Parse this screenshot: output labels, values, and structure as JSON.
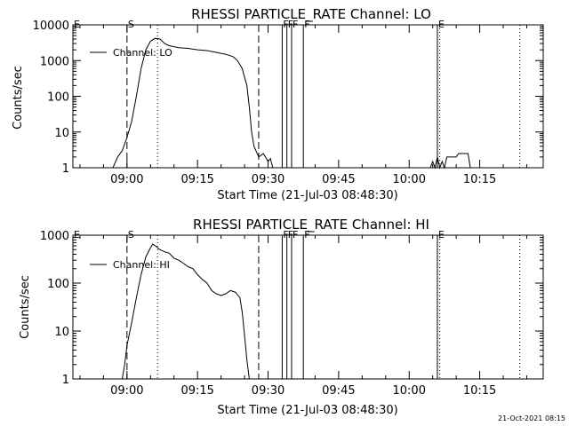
{
  "timestamp": "21-Oct-2021 08:15",
  "chart_data": [
    {
      "type": "line",
      "title": "RHESSI PARTICLE_RATE Channel: LO",
      "xlabel": "Start Time (21-Jul-03 08:48:30)",
      "ylabel": "Counts/sec",
      "y_scale": "log",
      "ylim": [
        1,
        10000
      ],
      "xlim": [
        "08:48:30",
        "10:28:30"
      ],
      "x_ticks": [
        "09:00",
        "09:15",
        "09:30",
        "09:45",
        "10:00",
        "10:15"
      ],
      "y_ticks": [
        "1",
        "10",
        "100",
        "1000",
        "10000"
      ],
      "legend": {
        "label": "Channel: LO",
        "position": "top-left"
      },
      "markers": [
        {
          "label": "E",
          "time": "08:48:30",
          "style": "none"
        },
        {
          "label": "S",
          "time": "09:00:00",
          "style": "dashed"
        },
        {
          "label": "",
          "time": "09:06:30",
          "style": "dotted"
        },
        {
          "label": "",
          "time": "09:28:00",
          "style": "dashed"
        },
        {
          "label": "F",
          "time": "09:33:00",
          "style": "solid"
        },
        {
          "label": "F",
          "time": "09:34:00",
          "style": "solid"
        },
        {
          "label": "F",
          "time": "09:35:00",
          "style": "solid"
        },
        {
          "label": "F",
          "time": "09:37:30",
          "style": "solid"
        },
        {
          "label": "E",
          "time": "10:06:00",
          "style": "solid"
        },
        {
          "label": "",
          "time": "10:06:30",
          "style": "dotted"
        },
        {
          "label": "",
          "time": "10:23:30",
          "style": "dotted"
        }
      ],
      "series": [
        {
          "values": [
            [
              "08:55:30",
              0.5
            ],
            [
              "08:57:00",
              1
            ],
            [
              "08:58:00",
              2
            ],
            [
              "08:59:00",
              3
            ],
            [
              "09:00:00",
              7
            ],
            [
              "09:01:00",
              20
            ],
            [
              "09:02:00",
              100
            ],
            [
              "09:03:00",
              600
            ],
            [
              "09:04:00",
              2000
            ],
            [
              "09:05:00",
              3500
            ],
            [
              "09:06:00",
              4200
            ],
            [
              "09:07:00",
              4000
            ],
            [
              "09:08:00",
              3000
            ],
            [
              "09:09:00",
              2600
            ],
            [
              "09:11:00",
              2300
            ],
            [
              "09:13:00",
              2200
            ],
            [
              "09:15:00",
              2000
            ],
            [
              "09:17:00",
              1900
            ],
            [
              "09:19:00",
              1700
            ],
            [
              "09:21:00",
              1500
            ],
            [
              "09:22:30",
              1300
            ],
            [
              "09:23:30",
              1000
            ],
            [
              "09:24:30",
              600
            ],
            [
              "09:25:30",
              200
            ],
            [
              "09:26:00",
              50
            ],
            [
              "09:26:30",
              10
            ],
            [
              "09:27:00",
              4
            ],
            [
              "09:28:00",
              2
            ],
            [
              "09:29:00",
              2.5
            ],
            [
              "09:30:00",
              1.5
            ],
            [
              "09:30:30",
              1.8
            ],
            [
              "09:31:00",
              1
            ],
            [
              "09:31:30",
              0.5
            ]
          ]
        },
        {
          "values": [
            [
              "10:04:30",
              0.5
            ],
            [
              "10:05:00",
              1.5
            ],
            [
              "10:05:30",
              0.5
            ],
            [
              "10:06:00",
              2
            ],
            [
              "10:06:30",
              0.5
            ],
            [
              "10:07:00",
              1.5
            ],
            [
              "10:07:30",
              0.5
            ],
            [
              "10:08:00",
              2
            ],
            [
              "10:09:00",
              2
            ],
            [
              "10:10:00",
              2
            ],
            [
              "10:10:30",
              2.5
            ],
            [
              "10:12:00",
              2.5
            ],
            [
              "10:12:30",
              2.5
            ],
            [
              "10:13:00",
              1
            ],
            [
              "10:13:30",
              0.5
            ]
          ]
        }
      ]
    },
    {
      "type": "line",
      "title": "RHESSI PARTICLE_RATE Channel: HI",
      "xlabel": "Start Time (21-Jul-03 08:48:30)",
      "ylabel": "Counts/sec",
      "y_scale": "log",
      "ylim": [
        1,
        1000
      ],
      "xlim": [
        "08:48:30",
        "10:28:30"
      ],
      "x_ticks": [
        "09:00",
        "09:15",
        "09:30",
        "09:45",
        "10:00",
        "10:15"
      ],
      "y_ticks": [
        "1",
        "10",
        "100",
        "1000"
      ],
      "legend": {
        "label": "Channel: HI",
        "position": "top-left"
      },
      "markers": [
        {
          "label": "E",
          "time": "08:48:30",
          "style": "none"
        },
        {
          "label": "S",
          "time": "09:00:00",
          "style": "dashed"
        },
        {
          "label": "",
          "time": "09:06:30",
          "style": "dotted"
        },
        {
          "label": "",
          "time": "09:28:00",
          "style": "dashed"
        },
        {
          "label": "F",
          "time": "09:33:00",
          "style": "solid"
        },
        {
          "label": "F",
          "time": "09:34:00",
          "style": "solid"
        },
        {
          "label": "F",
          "time": "09:35:00",
          "style": "solid"
        },
        {
          "label": "F",
          "time": "09:37:30",
          "style": "solid"
        },
        {
          "label": "E",
          "time": "10:06:00",
          "style": "solid"
        },
        {
          "label": "",
          "time": "10:06:30",
          "style": "dotted"
        },
        {
          "label": "",
          "time": "10:23:30",
          "style": "dotted"
        }
      ],
      "series": [
        {
          "values": [
            [
              "08:59:00",
              0.5
            ],
            [
              "08:59:30",
              2
            ],
            [
              "09:00:00",
              5
            ],
            [
              "09:01:00",
              15
            ],
            [
              "09:02:00",
              50
            ],
            [
              "09:03:00",
              150
            ],
            [
              "09:04:00",
              350
            ],
            [
              "09:05:00",
              550
            ],
            [
              "09:05:30",
              650
            ],
            [
              "09:06:00",
              600
            ],
            [
              "09:07:00",
              500
            ],
            [
              "09:08:00",
              450
            ],
            [
              "09:09:00",
              420
            ],
            [
              "09:10:00",
              330
            ],
            [
              "09:11:00",
              300
            ],
            [
              "09:12:00",
              260
            ],
            [
              "09:13:00",
              220
            ],
            [
              "09:14:00",
              200
            ],
            [
              "09:15:00",
              150
            ],
            [
              "09:16:00",
              120
            ],
            [
              "09:17:00",
              100
            ],
            [
              "09:18:00",
              70
            ],
            [
              "09:19:00",
              60
            ],
            [
              "09:20:00",
              55
            ],
            [
              "09:21:00",
              60
            ],
            [
              "09:22:00",
              70
            ],
            [
              "09:23:00",
              65
            ],
            [
              "09:24:00",
              50
            ],
            [
              "09:24:30",
              25
            ],
            [
              "09:25:00",
              8
            ],
            [
              "09:25:30",
              2.5
            ],
            [
              "09:26:00",
              0.5
            ]
          ]
        }
      ]
    }
  ]
}
